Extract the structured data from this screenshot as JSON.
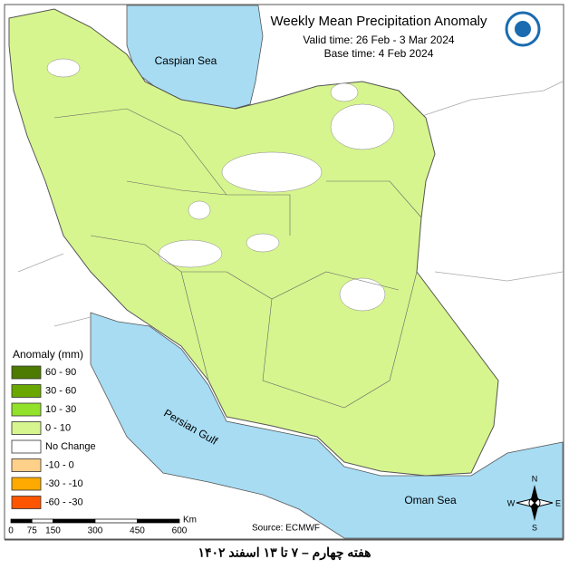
{
  "title": "Weekly Mean Precipitation Anomaly",
  "valid_time": "Valid time:  26 Feb - 3 Mar 2024",
  "base_time": "Base time: 4 Feb 2024",
  "labels": {
    "caspian": "Caspian Sea",
    "gulf": "Persian Gulf",
    "oman": "Oman Sea"
  },
  "legend": {
    "title": "Anomaly (mm)",
    "items": [
      {
        "label": "60 - 90",
        "color": "#4d7a00"
      },
      {
        "label": "30 - 60",
        "color": "#6aa800"
      },
      {
        "label": "10 - 30",
        "color": "#92e12a"
      },
      {
        "label": "0 - 10",
        "color": "#d6f58e"
      },
      {
        "label": "No Change",
        "color": "#ffffff"
      },
      {
        "label": "-10 - 0",
        "color": "#ffd08a"
      },
      {
        "label": "-30 - -10",
        "color": "#ffaa00"
      },
      {
        "label": "-60 - -30",
        "color": "#ff5500"
      }
    ]
  },
  "scale": {
    "ticks": [
      "0",
      "75",
      "150",
      "300",
      "450",
      "600"
    ],
    "unit": "Km"
  },
  "source": "Source: ECMWF",
  "compass": {
    "n": "N",
    "s": "S",
    "e": "E",
    "w": "W"
  },
  "caption": "هفته چهارم – ۷ تا ۱۳ اسفند ۱۴۰۲"
}
